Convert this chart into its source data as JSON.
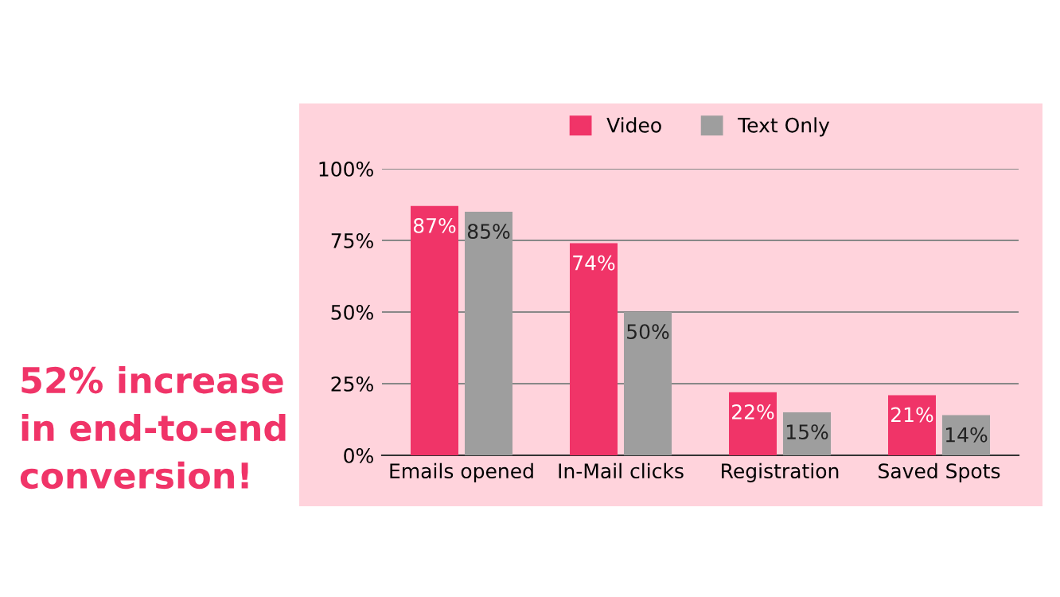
{
  "chart_data": {
    "type": "bar",
    "categories": [
      "Emails opened",
      "In-Mail clicks",
      "Registration",
      "Saved Spots"
    ],
    "series": [
      {
        "name": "Video",
        "color": "#f03468",
        "values": [
          87,
          74,
          22,
          21
        ]
      },
      {
        "name": "Text Only",
        "color": "#9e9e9e",
        "values": [
          85,
          50,
          15,
          14
        ]
      }
    ],
    "ylim": [
      0,
      100
    ],
    "yticks": [
      {
        "value": 0,
        "label": "0%"
      },
      {
        "value": 25,
        "label": "25%"
      },
      {
        "value": 50,
        "label": "50%"
      },
      {
        "value": 75,
        "label": "75%"
      },
      {
        "value": 100,
        "label": "100%"
      }
    ],
    "value_labels": [
      [
        "87%",
        "74%",
        "22%",
        "21%"
      ],
      [
        "85%",
        "50%",
        "15%",
        "14%"
      ]
    ],
    "grid": "y",
    "legend": "top",
    "annotations": [
      "52% increase\nin end-to-end\nconversion!"
    ]
  }
}
